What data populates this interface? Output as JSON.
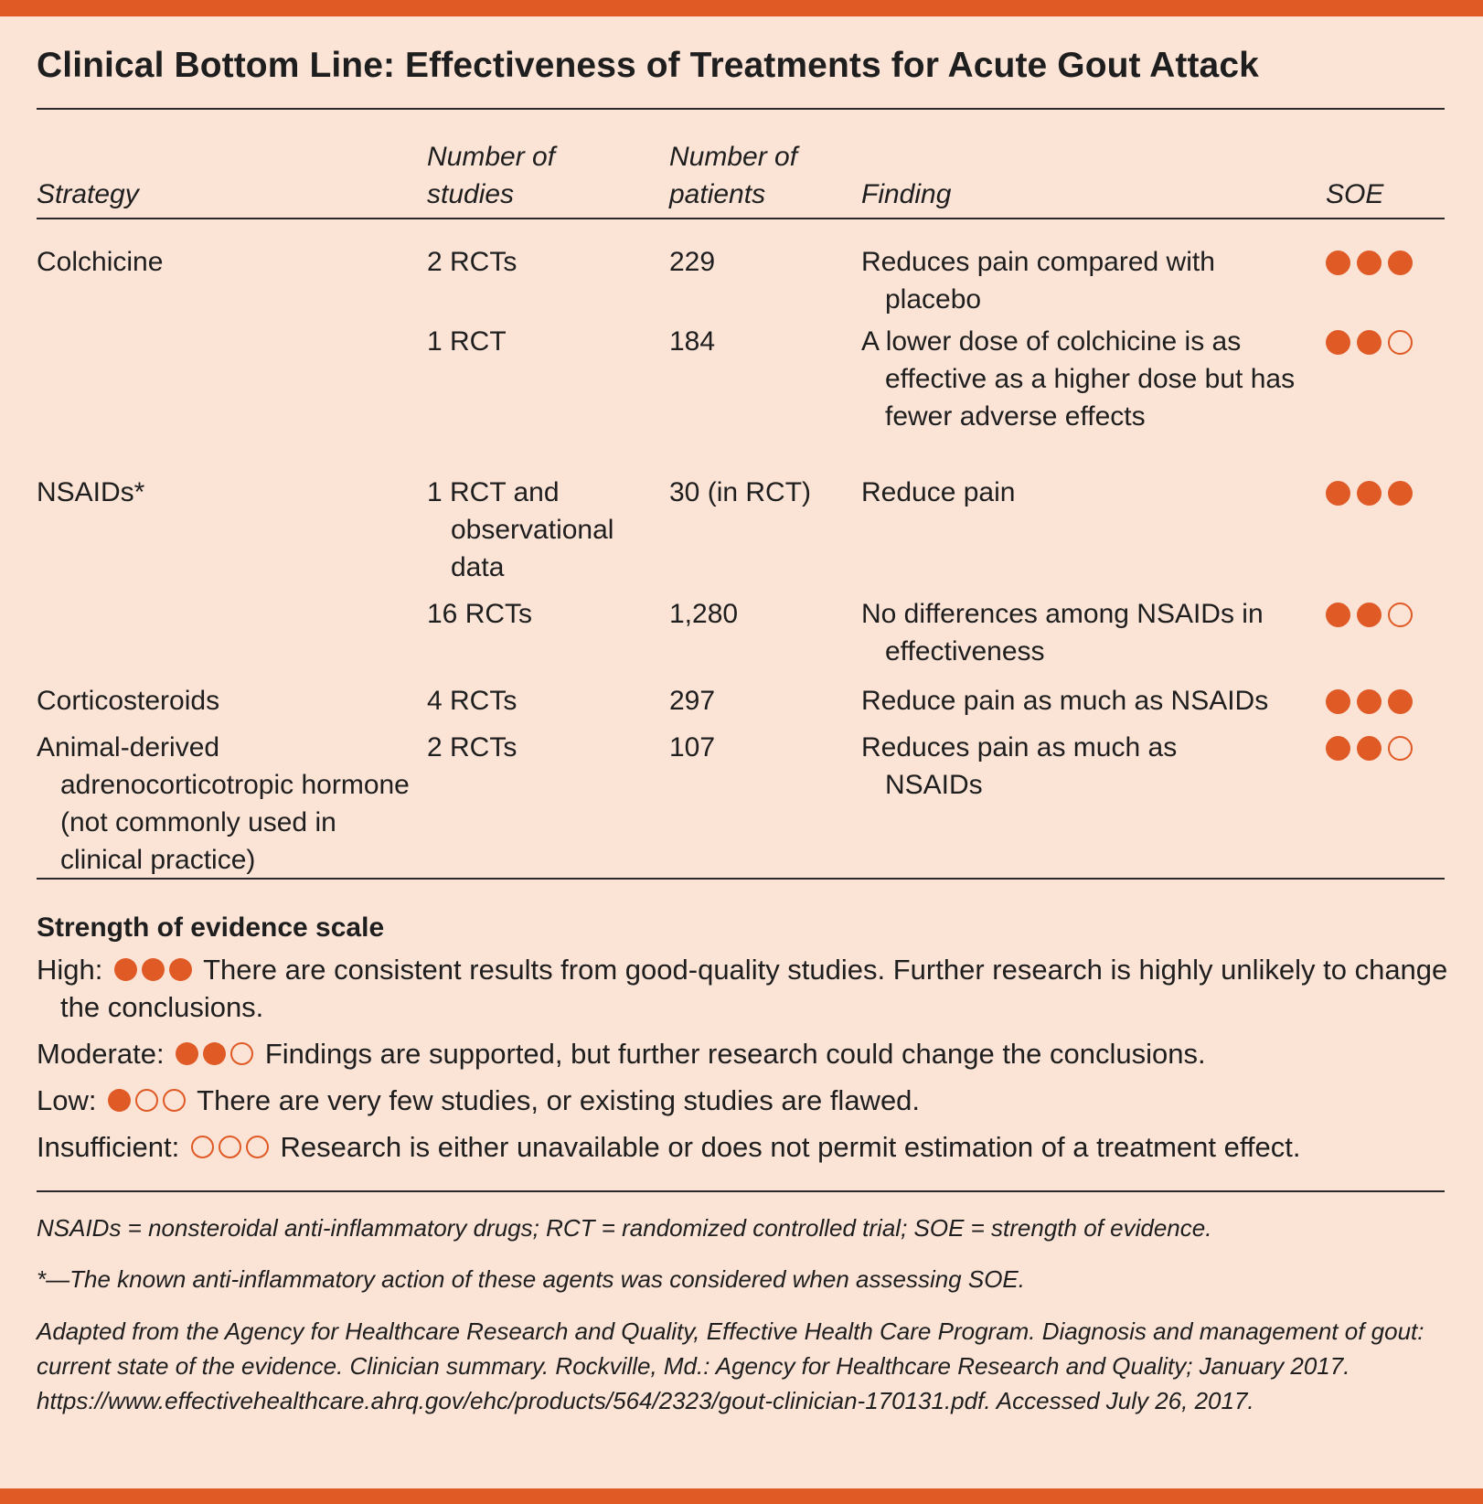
{
  "title": "Clinical Bottom Line: Effectiveness of Treatments for Acute Gout Attack",
  "columns": {
    "strategy": "Strategy",
    "studies_line1": "Number of",
    "studies_line2": "studies",
    "patients_line1": "Number of",
    "patients_line2": "patients",
    "finding": "Finding",
    "soe": "SOE"
  },
  "rows": [
    {
      "strategy": "Colchicine",
      "studies": "2 RCTs",
      "patients": "229",
      "finding": "Reduces pain compared with placebo",
      "soe_level": 3
    },
    {
      "strategy": "",
      "studies": "1 RCT",
      "patients": "184",
      "finding": "A lower dose of colchicine is as effective as a higher dose but has fewer adverse effects",
      "soe_level": 2
    },
    {
      "strategy": "NSAIDs*",
      "studies": "1 RCT and observational data",
      "patients": "30 (in RCT)",
      "finding": "Reduce pain",
      "soe_level": 3
    },
    {
      "strategy": "",
      "studies": "16 RCTs",
      "patients": "1,280",
      "finding": "No differences among NSAIDs in effectiveness",
      "soe_level": 2
    },
    {
      "strategy": "Corticosteroids",
      "studies": "4 RCTs",
      "patients": "297",
      "finding": "Reduce pain as much as NSAIDs",
      "soe_level": 3
    },
    {
      "strategy": "Animal-derived adrenocorticotropic hormone (not commonly used in clinical practice)",
      "studies": "2 RCTs",
      "patients": "107",
      "finding": "Reduces pain as much as NSAIDs",
      "soe_level": 2
    }
  ],
  "scale": {
    "title": "Strength of evidence scale",
    "levels": [
      {
        "label": "High:",
        "filled": 3,
        "text": "There are consistent results from good-quality studies. Further research is highly unlikely to change the conclusions."
      },
      {
        "label": "Moderate:",
        "filled": 2,
        "text": "Findings are supported, but further research could change the conclusions."
      },
      {
        "label": "Low:",
        "filled": 1,
        "text": "There are very few studies, or existing studies are flawed."
      },
      {
        "label": "Insufficient:",
        "filled": 0,
        "text": "Research is either unavailable or does not permit estimation of a treatment effect."
      }
    ]
  },
  "footnotes": {
    "abbreviations": "NSAIDs = nonsteroidal anti-inflammatory drugs; RCT = randomized controlled trial; SOE = strength of evidence.",
    "asterisk": "*—The known anti-inflammatory action of these agents was considered when assessing SOE.",
    "source": "Adapted from the Agency for Healthcare Research and Quality, Effective Health Care Program. Diagnosis and management of gout: current state of the evidence. Clinician summary. Rockville, Md.: Agency for Healthcare Research and Quality; January 2017. https://www.effectivehealthcare.ahrq.gov/ehc/products/564/2323/gout-clinician-170131.pdf. Accessed July 26, 2017."
  },
  "colors": {
    "accent": "#e05a26",
    "background": "#fbe3d6"
  }
}
